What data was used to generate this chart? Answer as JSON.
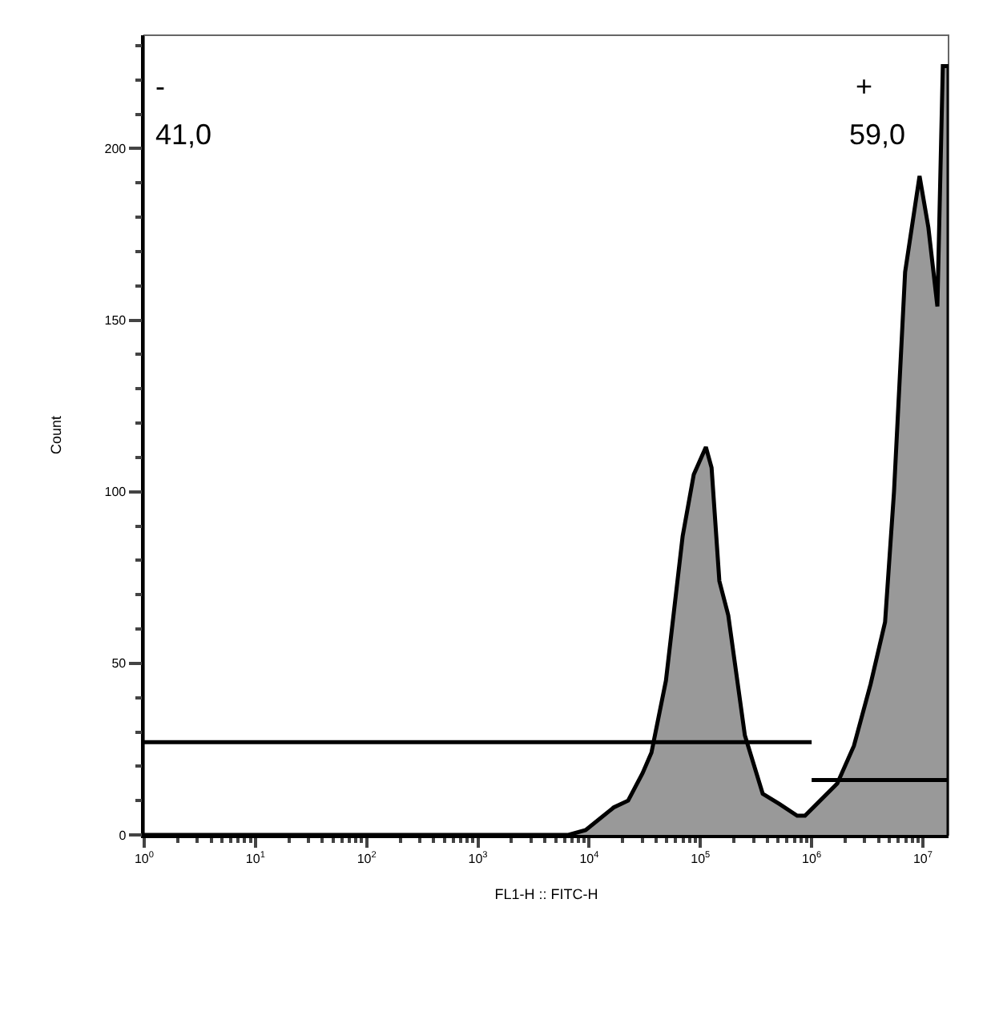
{
  "chart_data": {
    "type": "area",
    "xlabel": "FL1-H :: FITC-H",
    "ylabel": "Count",
    "log": "x",
    "xlim": [
      1,
      17000000
    ],
    "ylim": [
      0,
      233
    ],
    "grid": false,
    "xticks": [
      {
        "value": 1,
        "label": "10$^{0}$"
      },
      {
        "value": 10,
        "label": "10$^{1}$"
      },
      {
        "value": 100,
        "label": "10$^{2}$"
      },
      {
        "value": 1000,
        "label": "10$^{3}$"
      },
      {
        "value": 10000,
        "label": "10$^{4}$"
      },
      {
        "value": 100000,
        "label": "10$^{5}$"
      },
      {
        "value": 1000000,
        "label": "10$^{6}$"
      },
      {
        "value": 10000000,
        "label": "10$^{7}$"
      }
    ],
    "yticks": [
      0,
      50,
      100,
      150,
      200
    ],
    "series": [
      {
        "color": "#999999",
        "x": [
          1,
          6500,
          9300,
          16600,
          22400,
          30200,
          36300,
          49000,
          69200,
          87100,
          112000,
          126000,
          148000,
          178000,
          251000,
          363000,
          513000,
          741000,
          871000,
          1700000,
          2400000,
          3390000,
          4570000,
          5500000,
          6920000,
          9330000,
          11200000,
          13500000,
          15100000,
          17000000,
          17000000
        ],
        "values": [
          0,
          0,
          1.4,
          8,
          10,
          18,
          24,
          45,
          87,
          105,
          113,
          107,
          74,
          64,
          29,
          12,
          9,
          5.6,
          5.6,
          15,
          26,
          44,
          62,
          100,
          164,
          192,
          177,
          154,
          224,
          224,
          0
        ]
      },
      {
        "type": "line",
        "color": "#000000",
        "x": [
          1,
          1000000
        ],
        "values": [
          27,
          27
        ]
      },
      {
        "type": "line",
        "color": "#000000",
        "x": [
          1000000,
          17000000
        ],
        "values": [
          16,
          16
        ]
      }
    ],
    "annotations": [
      "-",
      "41,0",
      "+",
      "59,0"
    ]
  }
}
